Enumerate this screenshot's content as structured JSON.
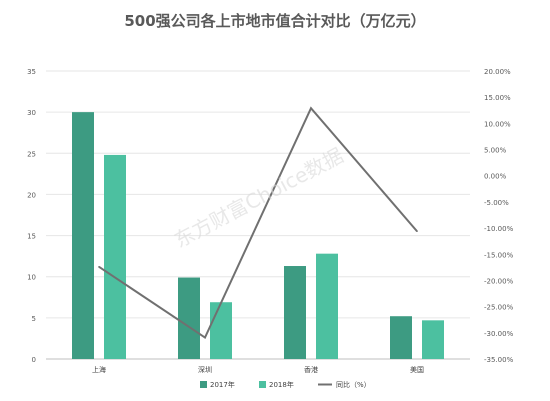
{
  "chart_data": {
    "type": "bar",
    "title": "500强公司各上市地市值合计对比（万亿元）",
    "categories": [
      "上海",
      "深圳",
      "香港",
      "美国"
    ],
    "series": [
      {
        "name": "2017年",
        "kind": "bar",
        "axis": "left",
        "color": "#3d9b82",
        "values": [
          30.0,
          9.9,
          11.3,
          5.2
        ]
      },
      {
        "name": "2018年",
        "kind": "bar",
        "axis": "left",
        "color": "#4cc0a0",
        "values": [
          24.8,
          6.9,
          12.8,
          4.7
        ]
      },
      {
        "name": "同比（%）",
        "kind": "line",
        "axis": "right",
        "color": "#707070",
        "values": [
          -17.4,
          -30.9,
          12.9,
          -10.6
        ]
      }
    ],
    "left_axis": {
      "min": 0,
      "max": 35,
      "step": 5,
      "ticks": [
        "0",
        "5",
        "10",
        "15",
        "20",
        "25",
        "30",
        "35"
      ]
    },
    "right_axis": {
      "min": -35,
      "max": 20,
      "step": 5,
      "ticks": [
        "-35.00%",
        "-30.00%",
        "-25.00%",
        "-20.00%",
        "-15.00%",
        "-10.00%",
        "-5.00%",
        "0.00%",
        "5.00%",
        "10.00%",
        "15.00%",
        "20.00%"
      ]
    },
    "grid": true,
    "legend_position": "bottom",
    "watermark": "东方财富Choice数据"
  }
}
